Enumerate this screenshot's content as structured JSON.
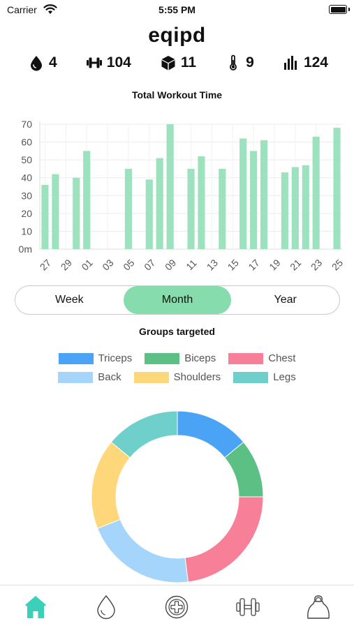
{
  "status_bar": {
    "carrier": "Carrier",
    "time": "5:55 PM"
  },
  "app": {
    "title": "eqipd"
  },
  "stats": [
    {
      "icon": "drop-icon",
      "value": "4"
    },
    {
      "icon": "dumbbell-icon",
      "value": "104"
    },
    {
      "icon": "box-icon",
      "value": "11"
    },
    {
      "icon": "thermometer-icon",
      "value": "9"
    },
    {
      "icon": "bar-chart-icon",
      "value": "124"
    }
  ],
  "chart_data": [
    {
      "type": "bar",
      "title": "Total Workout Time",
      "xlabel": "",
      "ylabel": "",
      "ylim": [
        0,
        70
      ],
      "y_ticks": [
        "0m",
        "10",
        "20",
        "30",
        "40",
        "50",
        "60",
        "70"
      ],
      "x_tick_labels": [
        "27",
        "29",
        "01",
        "03",
        "05",
        "07",
        "09",
        "11",
        "13",
        "15",
        "17",
        "19",
        "21",
        "23",
        "25"
      ],
      "categories": [
        "27",
        "28",
        "29",
        "30",
        "01",
        "02",
        "03",
        "04",
        "05",
        "06",
        "07",
        "08",
        "09",
        "10",
        "11",
        "12",
        "13",
        "14",
        "15",
        "16",
        "17",
        "18",
        "19",
        "20",
        "21",
        "22",
        "23",
        "24",
        "25"
      ],
      "values": [
        36,
        42,
        0,
        40,
        55,
        0,
        0,
        0,
        45,
        0,
        39,
        51,
        70,
        0,
        45,
        52,
        0,
        45,
        0,
        62,
        55,
        61,
        0,
        43,
        46,
        47,
        63,
        0,
        68
      ],
      "color": "#9de2bf",
      "grid": true
    },
    {
      "type": "pie",
      "title": "Groups targeted",
      "categories": [
        "Triceps",
        "Biceps",
        "Chest",
        "Back",
        "Shoulders",
        "Legs"
      ],
      "values": [
        14,
        11,
        23,
        21,
        17,
        14
      ],
      "colors": [
        "#4aa3f5",
        "#5cbf84",
        "#f77f97",
        "#a5d5fb",
        "#fed77a",
        "#6ecfcb"
      ],
      "legend": "top",
      "donut": true
    }
  ],
  "controls": {
    "period_options": [
      {
        "label": "Week",
        "selected": false
      },
      {
        "label": "Month",
        "selected": true
      },
      {
        "label": "Year",
        "selected": false
      }
    ]
  },
  "tab_bar": {
    "items": [
      {
        "icon": "home-icon",
        "active": true
      },
      {
        "icon": "drop-icon",
        "active": false
      },
      {
        "icon": "add-icon",
        "active": false
      },
      {
        "icon": "dumbbell-icon",
        "active": false
      },
      {
        "icon": "kettlebell-icon",
        "active": false
      }
    ],
    "active_color": "#3ad0b9"
  }
}
